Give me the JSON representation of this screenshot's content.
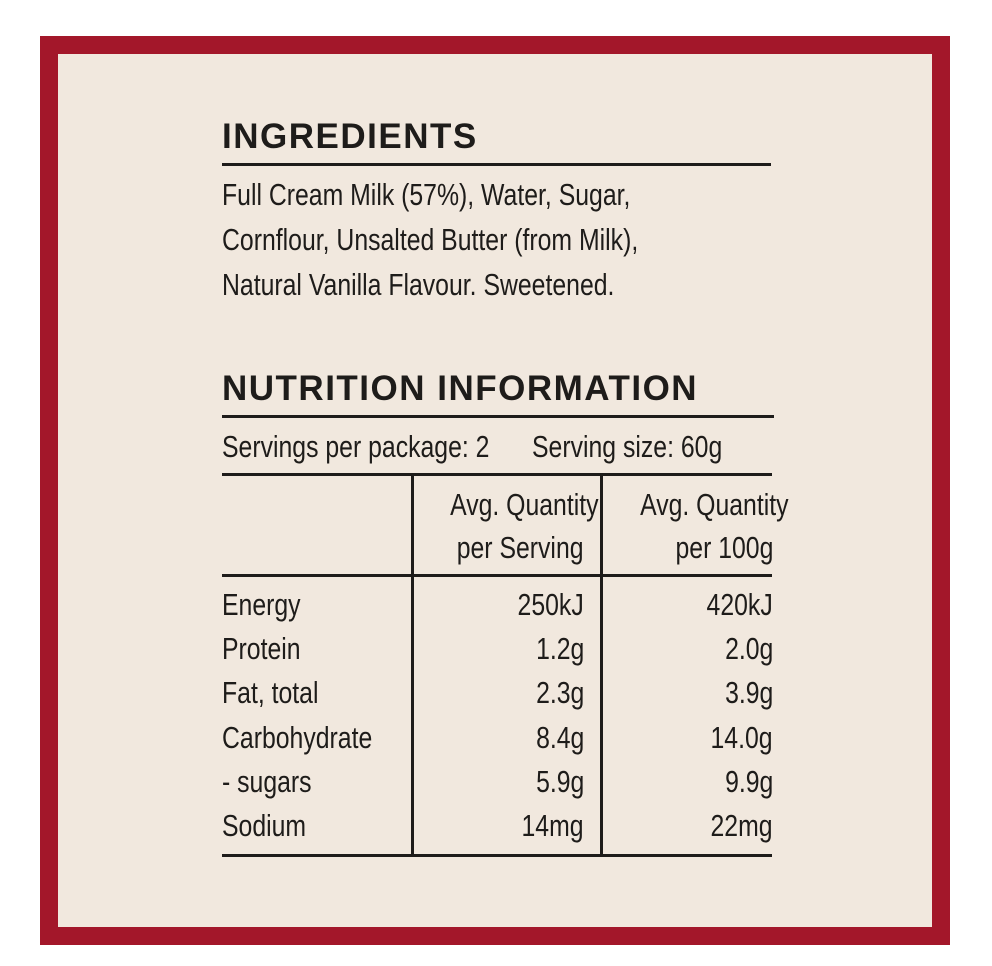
{
  "ingredients": {
    "heading": "INGREDIENTS",
    "lines": [
      "Full Cream Milk (57%), Water, Sugar,",
      "Cornflour, Unsalted Butter (from Milk),",
      "Natural Vanilla Flavour. Sweetened."
    ]
  },
  "nutrition": {
    "heading": "NUTRITION INFORMATION",
    "servings_per_package": "Servings per package: 2",
    "serving_size": "Serving size: 60g",
    "columns": [
      {
        "line1": "Avg. Quantity",
        "line2": "per Serving"
      },
      {
        "line1": "Avg. Quantity",
        "line2": "per 100g"
      }
    ],
    "rows": [
      {
        "label": "Energy",
        "per_serving": "250kJ",
        "per_100g": "420kJ"
      },
      {
        "label": "Protein",
        "per_serving": "1.2g",
        "per_100g": "2.0g"
      },
      {
        "label": "Fat, total",
        "per_serving": "2.3g",
        "per_100g": "3.9g"
      },
      {
        "label": "Carbohydrate",
        "per_serving": "8.4g",
        "per_100g": "14.0g"
      },
      {
        "label": "- sugars",
        "per_serving": "5.9g",
        "per_100g": "9.9g"
      },
      {
        "label": "Sodium",
        "per_serving": "14mg",
        "per_100g": "22mg"
      }
    ]
  },
  "colors": {
    "border": "#a3172a",
    "background": "#f1e8de",
    "text": "#1e1c1a"
  }
}
